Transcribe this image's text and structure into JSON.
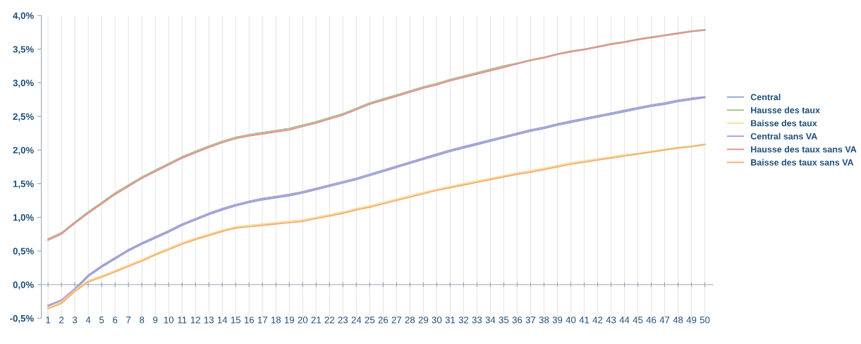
{
  "chart_data": {
    "type": "line",
    "categories": [
      "1",
      "2",
      "3",
      "4",
      "5",
      "6",
      "7",
      "8",
      "9",
      "10",
      "11",
      "12",
      "13",
      "14",
      "15",
      "16",
      "17",
      "18",
      "19",
      "20",
      "21",
      "22",
      "23",
      "24",
      "25",
      "26",
      "27",
      "28",
      "29",
      "30",
      "31",
      "32",
      "33",
      "34",
      "35",
      "36",
      "37",
      "38",
      "39",
      "40",
      "41",
      "42",
      "43",
      "44",
      "45",
      "46",
      "47",
      "48",
      "49",
      "50"
    ],
    "series": [
      {
        "name": "Central",
        "color": "#8fa8d8",
        "values": [
          -0.33,
          -0.25,
          -0.08,
          0.12,
          0.26,
          0.38,
          0.5,
          0.6,
          0.69,
          0.78,
          0.88,
          0.96,
          1.04,
          1.11,
          1.17,
          1.22,
          1.26,
          1.29,
          1.32,
          1.36,
          1.41,
          1.46,
          1.51,
          1.56,
          1.62,
          1.68,
          1.74,
          1.8,
          1.86,
          1.92,
          1.98,
          2.03,
          2.08,
          2.13,
          2.18,
          2.23,
          2.28,
          2.32,
          2.37,
          2.41,
          2.45,
          2.49,
          2.53,
          2.57,
          2.61,
          2.65,
          2.68,
          2.72,
          2.75,
          2.78
        ]
      },
      {
        "name": "Hausse des taux",
        "color": "#a8c090",
        "values": [
          0.68,
          0.77,
          0.93,
          1.08,
          1.22,
          1.36,
          1.48,
          1.6,
          1.7,
          1.8,
          1.9,
          1.98,
          2.06,
          2.13,
          2.19,
          2.23,
          2.26,
          2.29,
          2.32,
          2.37,
          2.42,
          2.48,
          2.54,
          2.62,
          2.7,
          2.76,
          2.82,
          2.88,
          2.94,
          2.99,
          3.05,
          3.1,
          3.15,
          3.2,
          3.25,
          3.29,
          3.34,
          3.38,
          3.43,
          3.47,
          3.5,
          3.54,
          3.58,
          3.61,
          3.65,
          3.68,
          3.71,
          3.74,
          3.77,
          3.79
        ]
      },
      {
        "name": "Baisse des taux",
        "color": "#f5dea0",
        "values": [
          -0.34,
          -0.26,
          -0.08,
          0.06,
          0.13,
          0.21,
          0.29,
          0.37,
          0.46,
          0.54,
          0.62,
          0.69,
          0.75,
          0.81,
          0.86,
          0.88,
          0.9,
          0.92,
          0.94,
          0.96,
          1.0,
          1.04,
          1.08,
          1.13,
          1.17,
          1.22,
          1.27,
          1.32,
          1.37,
          1.42,
          1.46,
          1.5,
          1.54,
          1.58,
          1.62,
          1.66,
          1.69,
          1.73,
          1.77,
          1.81,
          1.84,
          1.87,
          1.9,
          1.93,
          1.95,
          1.98,
          2.01,
          2.04,
          2.06,
          2.09
        ]
      },
      {
        "name": "Central sans VA",
        "color": "#b09ad0",
        "values": [
          -0.31,
          -0.23,
          -0.06,
          0.14,
          0.28,
          0.4,
          0.52,
          0.62,
          0.71,
          0.8,
          0.9,
          0.98,
          1.06,
          1.13,
          1.19,
          1.24,
          1.28,
          1.31,
          1.34,
          1.38,
          1.43,
          1.48,
          1.53,
          1.58,
          1.64,
          1.7,
          1.76,
          1.82,
          1.88,
          1.94,
          2.0,
          2.05,
          2.1,
          2.15,
          2.2,
          2.25,
          2.3,
          2.34,
          2.39,
          2.43,
          2.47,
          2.51,
          2.55,
          2.59,
          2.63,
          2.67,
          2.7,
          2.74,
          2.77,
          2.79
        ]
      },
      {
        "name": "Hausse des taux sans VA",
        "color": "#e89090",
        "values": [
          0.66,
          0.75,
          0.91,
          1.06,
          1.2,
          1.34,
          1.46,
          1.58,
          1.68,
          1.78,
          1.88,
          1.96,
          2.04,
          2.11,
          2.17,
          2.21,
          2.24,
          2.27,
          2.3,
          2.35,
          2.4,
          2.46,
          2.52,
          2.6,
          2.68,
          2.74,
          2.8,
          2.86,
          2.92,
          2.97,
          3.03,
          3.08,
          3.13,
          3.18,
          3.23,
          3.28,
          3.33,
          3.37,
          3.42,
          3.46,
          3.49,
          3.53,
          3.57,
          3.6,
          3.64,
          3.67,
          3.7,
          3.73,
          3.76,
          3.78
        ]
      },
      {
        "name": "Baisse des taux sans VA",
        "color": "#f5b070",
        "values": [
          -0.36,
          -0.28,
          -0.1,
          0.04,
          0.11,
          0.19,
          0.27,
          0.35,
          0.44,
          0.52,
          0.6,
          0.67,
          0.73,
          0.79,
          0.84,
          0.86,
          0.88,
          0.9,
          0.92,
          0.94,
          0.98,
          1.02,
          1.06,
          1.11,
          1.15,
          1.2,
          1.25,
          1.3,
          1.35,
          1.4,
          1.44,
          1.48,
          1.52,
          1.56,
          1.6,
          1.64,
          1.67,
          1.71,
          1.75,
          1.79,
          1.82,
          1.85,
          1.88,
          1.91,
          1.94,
          1.97,
          2.0,
          2.03,
          2.05,
          2.08
        ]
      }
    ],
    "ylim": [
      -0.5,
      4.0
    ],
    "yticks": [
      {
        "value": -0.5,
        "label": "-0,5%"
      },
      {
        "value": 0.0,
        "label": "0,0%"
      },
      {
        "value": 0.5,
        "label": "0,5%"
      },
      {
        "value": 1.0,
        "label": "1,0%"
      },
      {
        "value": 1.5,
        "label": "1,5%"
      },
      {
        "value": 2.0,
        "label": "2,0%"
      },
      {
        "value": 2.5,
        "label": "2,5%"
      },
      {
        "value": 3.0,
        "label": "3,0%"
      },
      {
        "value": 3.5,
        "label": "3,5%"
      },
      {
        "value": 4.0,
        "label": "4,0%"
      }
    ],
    "grid": "x",
    "legend": "right",
    "marker": "none",
    "line_style": "solid"
  }
}
